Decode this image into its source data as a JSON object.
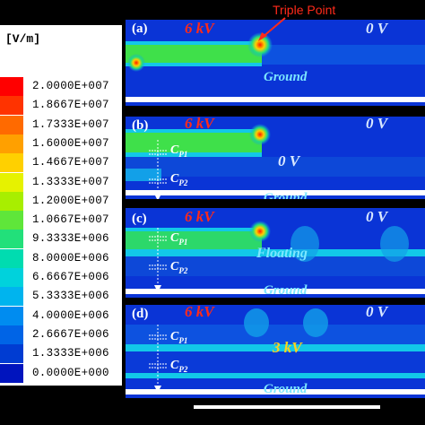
{
  "legend": {
    "unit": "[V/m]",
    "entries": [
      {
        "value": "2.0000E+007",
        "color": "#ff0000"
      },
      {
        "value": "1.8667E+007",
        "color": "#ff3300"
      },
      {
        "value": "1.7333E+007",
        "color": "#ff6a00"
      },
      {
        "value": "1.6000E+007",
        "color": "#ffa000"
      },
      {
        "value": "1.4667E+007",
        "color": "#ffd000"
      },
      {
        "value": "1.3333E+007",
        "color": "#e6f200"
      },
      {
        "value": "1.2000E+007",
        "color": "#a8ee00"
      },
      {
        "value": "1.0667E+007",
        "color": "#5fe63a"
      },
      {
        "value": "9.3333E+006",
        "color": "#22e07a"
      },
      {
        "value": "8.0000E+006",
        "color": "#00dcb0"
      },
      {
        "value": "6.6667E+006",
        "color": "#00d2dc"
      },
      {
        "value": "5.3333E+006",
        "color": "#00b4ee"
      },
      {
        "value": "4.0000E+006",
        "color": "#008cf0"
      },
      {
        "value": "2.6667E+006",
        "color": "#0064e6"
      },
      {
        "value": "1.3333E+006",
        "color": "#003cd2"
      },
      {
        "value": "0.0000E+000",
        "color": "#0014be"
      }
    ]
  },
  "annotation": {
    "triple_point": "Triple Point"
  },
  "panels": [
    {
      "label": "(a)",
      "high_voltage": "6 kV",
      "zero_voltage": "0 V",
      "ground": "Ground"
    },
    {
      "label": "(b)",
      "high_voltage": "6 kV",
      "zero_voltage": "0 V",
      "zero_voltage_mid": "0 V",
      "ground": "Ground",
      "cp1": "C",
      "cp1_sub": "P1",
      "cp2": "C",
      "cp2_sub": "P2"
    },
    {
      "label": "(c)",
      "high_voltage": "6 kV",
      "zero_voltage": "0 V",
      "floating": "Floating",
      "ground": "Ground",
      "cp1": "C",
      "cp1_sub": "P1",
      "cp2": "C",
      "cp2_sub": "P2"
    },
    {
      "label": "(d)",
      "high_voltage": "6 kV",
      "zero_voltage": "0 V",
      "mid_voltage": "3 kV",
      "ground": "Ground",
      "cp1": "C",
      "cp1_sub": "P1",
      "cp2": "C",
      "cp2_sub": "P2"
    }
  ],
  "colors": {
    "background": "#000000",
    "field_low": "#0a2fd0",
    "field_mid": "#12c8e8",
    "field_high": "#3fe04a",
    "electrode_hot": "#ff1a00",
    "text_high_voltage": "#ff2a1a",
    "text_ground": "#7ce7ff",
    "text_3kv": "#ffd21a"
  }
}
